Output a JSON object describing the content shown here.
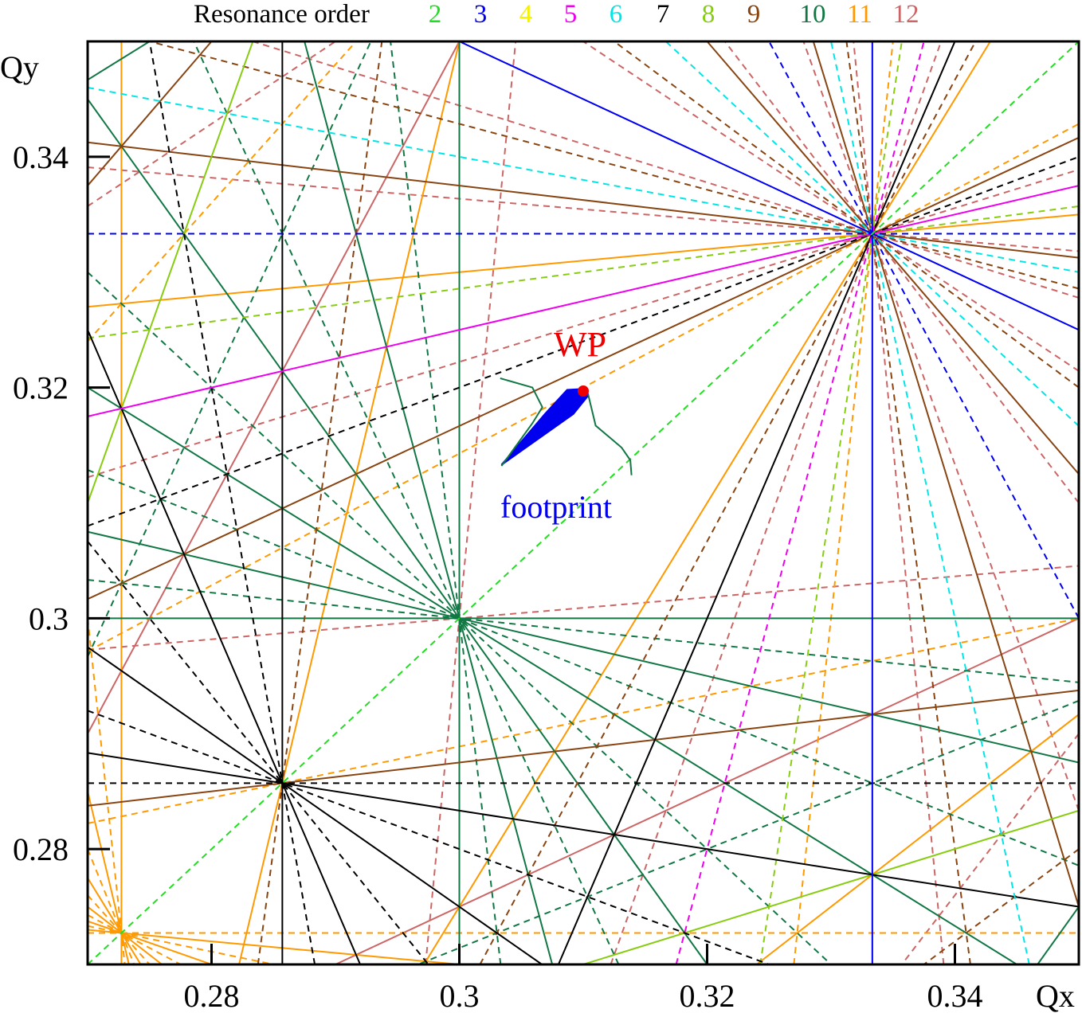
{
  "chart_data": {
    "type": "line",
    "subtype": "tune-diagram resonance lines",
    "xlabel": "Qx",
    "ylabel": "Qy",
    "xlim": [
      0.27,
      0.35
    ],
    "ylim": [
      0.27,
      0.35
    ],
    "x_ticks": [
      0.28,
      0.3,
      0.32,
      0.34
    ],
    "x_tick_labels": [
      "0.28",
      "0.3",
      "0.32",
      "0.34"
    ],
    "y_ticks": [
      0.28,
      0.3,
      0.32,
      0.34
    ],
    "y_tick_labels": [
      "0.28",
      "0.3",
      "0.32",
      "0.34"
    ],
    "grid": false,
    "legend": {
      "title": "Resonance order",
      "placement": "top",
      "entries": [
        {
          "label": "2",
          "order": 2,
          "color": "#22dd22"
        },
        {
          "label": "3",
          "order": 3,
          "color": "#0000ee"
        },
        {
          "label": "4",
          "order": 4,
          "color": "#f3f300"
        },
        {
          "label": "5",
          "order": 5,
          "color": "#ee00ee"
        },
        {
          "label": "6",
          "order": 6,
          "color": "#00e6e6"
        },
        {
          "label": "7",
          "order": 7,
          "color": "#000000"
        },
        {
          "label": "8",
          "order": 8,
          "color": "#88cc11"
        },
        {
          "label": "9",
          "order": 9,
          "color": "#884411"
        },
        {
          "label": "10",
          "order": 10,
          "color": "#117744"
        },
        {
          "label": "11",
          "order": 11,
          "color": "#ff9900"
        },
        {
          "label": "12",
          "order": 12,
          "color": "#cc6666"
        }
      ]
    },
    "resonance_rule": "lines m*Qx + n*Qy = p; order |m|+|n|; solid when n is even, dashed when n is odd",
    "working_point": {
      "label": "WP",
      "qx": 0.31,
      "qy": 0.3197,
      "color": "#ee0000"
    },
    "footprint": {
      "label": "footprint",
      "color": "#0000ee",
      "polygon": [
        [
          0.3034,
          0.3133
        ],
        [
          0.3092,
          0.3177
        ],
        [
          0.3104,
          0.3193
        ],
        [
          0.3103,
          0.3199
        ],
        [
          0.3087,
          0.3198
        ],
        [
          0.3069,
          0.3177
        ]
      ],
      "outline_color": "#117744",
      "outline_left": [
        [
          0.3034,
          0.3132
        ],
        [
          0.3059,
          0.3169
        ],
        [
          0.3067,
          0.3183
        ],
        [
          0.3059,
          0.32
        ],
        [
          0.3033,
          0.3208
        ]
      ],
      "outline_right": [
        [
          0.3104,
          0.3194
        ],
        [
          0.311,
          0.3167
        ],
        [
          0.3131,
          0.3148
        ],
        [
          0.3138,
          0.3137
        ],
        [
          0.3139,
          0.3124
        ]
      ]
    }
  }
}
